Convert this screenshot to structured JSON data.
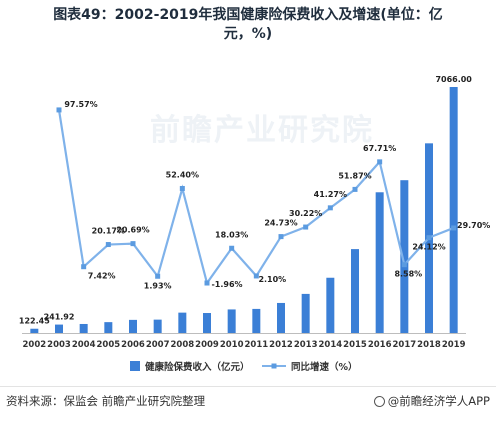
{
  "title_line1": "图表49：2002-2019年我国健康险保费收入及增速(单位：亿",
  "title_line2": "元，%)",
  "source": "资料来源：保监会 前瞻产业研究院整理",
  "brand": "@前瞻经济学人APP",
  "watermark": "前瞻产业研究院",
  "colors": {
    "bar": "#3b7fd6",
    "line": "#7fb2ea",
    "marker": "#5b9be0"
  },
  "chart_data": {
    "type": "bar+line",
    "categories": [
      "2002",
      "2003",
      "2004",
      "2005",
      "2006",
      "2007",
      "2008",
      "2009",
      "2010",
      "2011",
      "2012",
      "2013",
      "2014",
      "2015",
      "2016",
      "2017",
      "2018",
      "2019"
    ],
    "series": [
      {
        "name": "健康险保费收入（亿元）",
        "type": "bar",
        "values": [
          122.45,
          241.92,
          259.0,
          312.0,
          377.0,
          384.0,
          585.0,
          574.0,
          677.0,
          692.0,
          863.0,
          1123.0,
          1587.0,
          2410.0,
          4042.0,
          4389.0,
          5448.0,
          7066.0
        ],
        "labels": [
          "122.45",
          "241.92",
          "",
          "",
          "",
          "",
          "",
          "",
          "",
          "",
          "",
          "",
          "",
          "",
          "",
          "",
          "",
          "7066.00"
        ]
      },
      {
        "name": "同比增速（%）",
        "type": "line",
        "values": [
          null,
          97.57,
          7.42,
          20.17,
          20.69,
          1.93,
          52.4,
          -1.96,
          18.03,
          2.1,
          24.73,
          30.22,
          41.27,
          51.87,
          67.71,
          8.58,
          24.12,
          29.7
        ],
        "labels": [
          "",
          "97.57%",
          "7.42%",
          "20.17%",
          "20.69%",
          "1.93%",
          "52.40%",
          "-1.96%",
          "18.03%",
          "2.10%",
          "24.73%",
          "30.22%",
          "41.27%",
          "51.87%",
          "67.71%",
          "8.58%",
          "24.12%",
          "29.70%"
        ]
      }
    ],
    "bar_ylim": [
      0,
      7066
    ],
    "line_ylim": [
      -10,
      105
    ],
    "legend_position": "bottom",
    "grid": false
  }
}
